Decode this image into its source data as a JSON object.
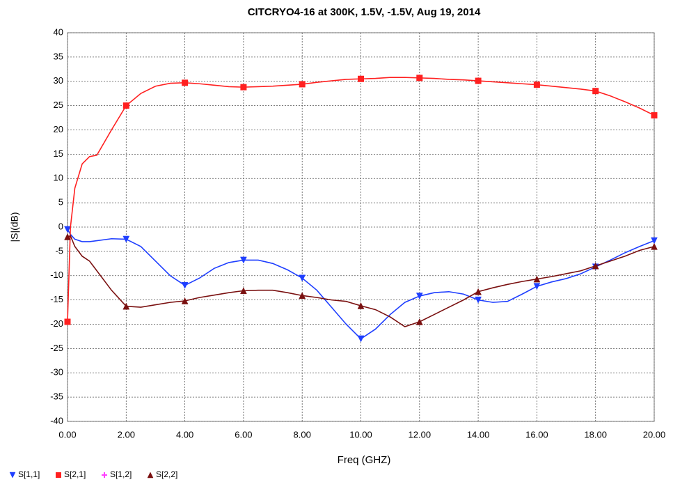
{
  "chart_data": {
    "type": "line",
    "title": "CITCRYO4-16 at 300K, 1.5V, -1.5V, Aug 19, 2014",
    "xlabel": "Freq (GHZ)",
    "ylabel": "|S|(dB)",
    "x": [
      0,
      0.1,
      0.25,
      0.5,
      0.75,
      1,
      1.5,
      2,
      2.5,
      3,
      3.5,
      4,
      4.5,
      5,
      5.5,
      6,
      6.5,
      7,
      7.5,
      8,
      8.5,
      9,
      9.5,
      10,
      10.5,
      11,
      11.5,
      12,
      12.5,
      13,
      13.5,
      14,
      14.5,
      15,
      15.5,
      16,
      16.5,
      17,
      17.5,
      18,
      18.5,
      19,
      19.5,
      20
    ],
    "series": [
      {
        "name": "S[1,1]",
        "color": "#1f3fff",
        "marker": "triangle-down",
        "values": [
          -0.5,
          -1.5,
          -2.5,
          -3,
          -3,
          -2.8,
          -2.4,
          -2.5,
          -4,
          -7,
          -10,
          -12,
          -10.5,
          -8.5,
          -7.3,
          -6.8,
          -6.8,
          -7.5,
          -8.8,
          -10.5,
          -13,
          -16.5,
          -20,
          -23,
          -21,
          -18,
          -15.5,
          -14.2,
          -13.5,
          -13.3,
          -13.8,
          -15,
          -15.5,
          -15.3,
          -13.8,
          -12.2,
          -11.3,
          -10.6,
          -9.6,
          -8.2,
          -6.8,
          -5.3,
          -4,
          -2.8
        ]
      },
      {
        "name": "S[2,1]",
        "color": "#ff2020",
        "marker": "square",
        "values": [
          -19.5,
          0,
          8,
          13,
          14.5,
          14.8,
          20,
          25,
          27.5,
          29,
          29.6,
          29.7,
          29.5,
          29.2,
          28.9,
          28.8,
          28.9,
          29,
          29.2,
          29.4,
          29.8,
          30.1,
          30.4,
          30.5,
          30.6,
          30.8,
          30.8,
          30.7,
          30.6,
          30.4,
          30.3,
          30.1,
          29.9,
          29.7,
          29.5,
          29.3,
          29,
          28.7,
          28.4,
          28,
          27,
          25.8,
          24.5,
          23
        ]
      },
      {
        "name": "S[1,2]",
        "color": "#ff40ff",
        "marker": "plus",
        "values": [
          null,
          null,
          null,
          null,
          null,
          null,
          null,
          null,
          null,
          null,
          null,
          null,
          null,
          null,
          null,
          null,
          null,
          null,
          null,
          null,
          null,
          null,
          null,
          null,
          null,
          null,
          null,
          null,
          null,
          null,
          null,
          null,
          null,
          null,
          null,
          null,
          null,
          null,
          null,
          null,
          null,
          null,
          null,
          null
        ]
      },
      {
        "name": "S[2,2]",
        "color": "#7a1010",
        "marker": "triangle-up",
        "values": [
          -2,
          -1.8,
          -4,
          -6,
          -7,
          -9,
          -13,
          -16.3,
          -16.5,
          -16,
          -15.5,
          -15.2,
          -14.5,
          -14,
          -13.5,
          -13.1,
          -13,
          -13,
          -13.5,
          -14.1,
          -14.5,
          -15,
          -15.3,
          -16.2,
          -17,
          -18.5,
          -20.5,
          -19.5,
          -18,
          -16.5,
          -15,
          -13.3,
          -12.5,
          -11.8,
          -11.2,
          -10.7,
          -10.2,
          -9.6,
          -9,
          -8,
          -7,
          -6,
          -4.8,
          -4
        ]
      }
    ],
    "xlim": [
      0,
      20
    ],
    "xticks": [
      {
        "value": 0,
        "label": "0.00"
      },
      {
        "value": 2,
        "label": "2.00"
      },
      {
        "value": 4,
        "label": "4.00"
      },
      {
        "value": 6,
        "label": "6.00"
      },
      {
        "value": 8,
        "label": "8.00"
      },
      {
        "value": 10,
        "label": "10.00"
      },
      {
        "value": 12,
        "label": "12.00"
      },
      {
        "value": 14,
        "label": "14.00"
      },
      {
        "value": 16,
        "label": "16.00"
      },
      {
        "value": 18,
        "label": "18.00"
      },
      {
        "value": 20,
        "label": "20.00"
      }
    ],
    "ylim": [
      -40,
      40
    ],
    "yticks": [
      -40,
      -35,
      -30,
      -25,
      -20,
      -15,
      -10,
      -5,
      0,
      5,
      10,
      15,
      20,
      25,
      30,
      35,
      40
    ],
    "grid": true,
    "legend": "bottom-left"
  }
}
